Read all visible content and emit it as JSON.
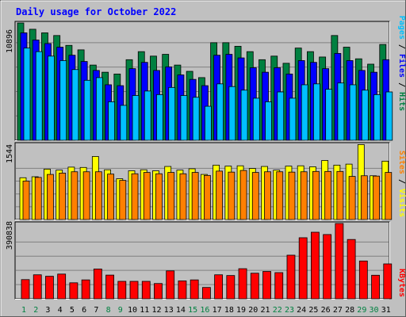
{
  "chart_data": [
    {
      "type": "bar",
      "title": "Daily usage for October 2022",
      "categories": [
        "1",
        "2",
        "3",
        "4",
        "5",
        "6",
        "7",
        "8",
        "9",
        "10",
        "11",
        "12",
        "13",
        "14",
        "15",
        "16",
        "17",
        "18",
        "19",
        "20",
        "21",
        "22",
        "23",
        "24",
        "25",
        "26",
        "27",
        "28",
        "29",
        "30",
        "31"
      ],
      "weekend_days": [
        "1",
        "2",
        "8",
        "9",
        "15",
        "16",
        "22",
        "23",
        "29",
        "30"
      ],
      "ytick_label": "10896",
      "ytick_value": 10896,
      "ylim": [
        0,
        13100
      ],
      "series": [
        {
          "name": "Hits",
          "color": "#008040",
          "values": [
            13100,
            12400,
            12000,
            11700,
            10600,
            10100,
            8400,
            7600,
            7400,
            9000,
            9900,
            9400,
            9600,
            8400,
            7700,
            7000,
            10900,
            10900,
            10500,
            9900,
            9000,
            9400,
            8600,
            10300,
            9900,
            9300,
            11700,
            10400,
            9100,
            8500,
            10700
          ]
        },
        {
          "name": "Files",
          "color": "#0000ff",
          "values": [
            12000,
            11200,
            10800,
            10400,
            9500,
            8800,
            7800,
            6200,
            6100,
            8000,
            8700,
            7800,
            8200,
            7300,
            6800,
            6100,
            9500,
            9600,
            9200,
            8100,
            7600,
            8100,
            7400,
            8900,
            8700,
            8000,
            9700,
            8900,
            7800,
            7600,
            9000
          ]
        },
        {
          "name": "Pages",
          "color": "#00c0ff",
          "values": [
            10300,
            9900,
            9400,
            8900,
            7900,
            6700,
            7000,
            4300,
            3900,
            5000,
            5500,
            5100,
            5900,
            5000,
            4800,
            3800,
            6300,
            6000,
            5600,
            4700,
            4300,
            5400,
            4700,
            6200,
            6300,
            5700,
            6400,
            6200,
            5600,
            5100,
            5400
          ]
        }
      ]
    },
    {
      "type": "bar",
      "categories": [
        "1",
        "2",
        "3",
        "4",
        "5",
        "6",
        "7",
        "8",
        "9",
        "10",
        "11",
        "12",
        "13",
        "14",
        "15",
        "16",
        "17",
        "18",
        "19",
        "20",
        "21",
        "22",
        "23",
        "24",
        "25",
        "26",
        "27",
        "28",
        "29",
        "30",
        "31"
      ],
      "ytick_label": "1544",
      "ytick_value": 1544,
      "ylim": [
        0,
        2270
      ],
      "series": [
        {
          "name": "Visits",
          "color": "#ffff00",
          "values": [
            1260,
            1290,
            1520,
            1490,
            1580,
            1570,
            1900,
            1500,
            1230,
            1470,
            1500,
            1470,
            1600,
            1490,
            1530,
            1360,
            1640,
            1610,
            1620,
            1540,
            1600,
            1490,
            1610,
            1620,
            1590,
            1780,
            1640,
            1670,
            2260,
            1320,
            1760
          ]
        },
        {
          "name": "Sites",
          "color": "#ff8000",
          "values": [
            1160,
            1270,
            1360,
            1400,
            1440,
            1440,
            1440,
            1370,
            1180,
            1380,
            1420,
            1380,
            1420,
            1380,
            1420,
            1330,
            1460,
            1430,
            1480,
            1420,
            1440,
            1440,
            1430,
            1440,
            1450,
            1450,
            1450,
            1300,
            1320,
            1310,
            1420
          ]
        }
      ]
    },
    {
      "type": "bar",
      "categories": [
        "1",
        "2",
        "3",
        "4",
        "5",
        "6",
        "7",
        "8",
        "9",
        "10",
        "11",
        "12",
        "13",
        "14",
        "15",
        "16",
        "17",
        "18",
        "19",
        "20",
        "21",
        "22",
        "23",
        "24",
        "25",
        "26",
        "27",
        "28",
        "29",
        "30",
        "31"
      ],
      "ytick_label": "390838",
      "ytick_value": 390838,
      "ylim": [
        0,
        518000
      ],
      "series": [
        {
          "name": "KBytes",
          "color": "#ff0000",
          "values": [
            132000,
            165000,
            155000,
            170000,
            110000,
            130000,
            205000,
            163000,
            120000,
            120000,
            120000,
            105000,
            192000,
            123000,
            130000,
            78000,
            165000,
            160000,
            207000,
            176000,
            188000,
            180000,
            300000,
            420000,
            458000,
            442000,
            518000,
            408000,
            260000,
            162000,
            240000
          ]
        }
      ]
    }
  ]
}
